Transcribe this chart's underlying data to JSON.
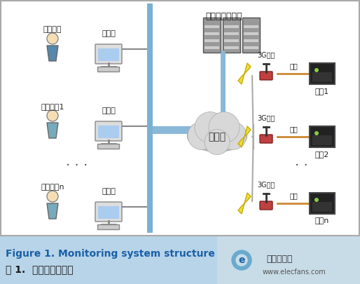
{
  "bg_color": "#ffffff",
  "caption_bg": "#b8d4e8",
  "caption_line1": "Figure 1. Monitoring system structure",
  "caption_line2": "图 1.  监控系统结构图",
  "caption_line1_color": "#1a5fa8",
  "caption_line2_color": "#1a1a1a",
  "figsize": [
    5.14,
    4.05
  ],
  "dpi": 100,
  "main_bg": "#f0f0f0",
  "server_label": "服务器与数据库",
  "internet_label": "互联网",
  "client_label_top": "客户端",
  "dev_label1": "开发人员",
  "personal_label": "个人客户",
  "personal_label2": "个人客户",
  "dots": "· ·",
  "terminal_label": "3G终端",
  "serial_label": "串口",
  "device_labels": [
    "设备1",
    "设备2",
    "设备n"
  ]
}
